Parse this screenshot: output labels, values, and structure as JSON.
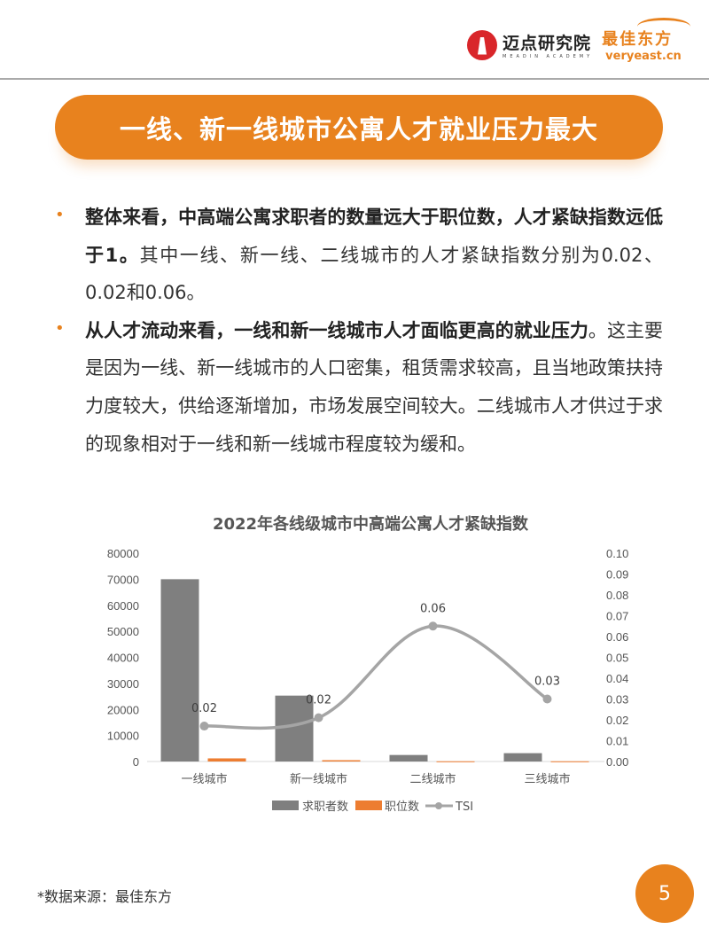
{
  "header": {
    "logo1_cn": "迈点研究院",
    "logo1_en": "MEADIN ACADEMY",
    "logo2_cn": "最佳东方",
    "logo2_en": "veryeast.cn"
  },
  "title": "一线、新一线城市公寓人才就业压力最大",
  "bullets": [
    {
      "bold": "整体来看，中高端公寓求职者的数量远大于职位数，人才紧缺指数远低于1。",
      "normal": "其中一线、新一线、二线城市的人才紧缺指数分别为0.02、0.02和0.06。"
    },
    {
      "bold": "从人才流动来看，一线和新一线城市人才面临更高的就业压力",
      "normal": "。这主要是因为一线、新一线城市的人口密集，租赁需求较高，且当地政策扶持力度较大，供给逐渐增加，市场发展空间较大。二线城市人才供过于求的现象相对于一线和新一线城市程度较为缓和。"
    }
  ],
  "chart_data": {
    "type": "bar+line",
    "title": "2022年各线级城市中高端公寓人才紧缺指数",
    "categories": [
      "一线城市",
      "新一线城市",
      "二线城市",
      "三线城市"
    ],
    "series": [
      {
        "name": "求职者数",
        "type": "bar",
        "axis": "left",
        "color": "#7f7f7f",
        "values": [
          70000,
          25300,
          2500,
          3200
        ]
      },
      {
        "name": "职位数",
        "type": "bar",
        "axis": "left",
        "color": "#ed7d31",
        "values": [
          1200,
          500,
          80,
          80
        ]
      },
      {
        "name": "TSI",
        "type": "line",
        "axis": "right",
        "color": "#a5a5a5",
        "values": [
          0.017,
          0.021,
          0.065,
          0.03
        ],
        "labels": [
          "0.02",
          "0.02",
          "0.06",
          "0.03"
        ]
      }
    ],
    "left_ylim": [
      0,
      80000
    ],
    "left_ticks": [
      "0",
      "10000",
      "20000",
      "30000",
      "40000",
      "50000",
      "60000",
      "70000",
      "80000"
    ],
    "right_ylim": [
      0,
      0.1
    ],
    "right_ticks": [
      "0.00",
      "0.01",
      "0.02",
      "0.03",
      "0.04",
      "0.05",
      "0.06",
      "0.07",
      "0.08",
      "0.09",
      "0.10"
    ],
    "legend": "bottom",
    "grid": false
  },
  "footer": {
    "source": "*数据来源：最佳东方",
    "page": "5"
  },
  "colors": {
    "accent": "#e8821e"
  }
}
